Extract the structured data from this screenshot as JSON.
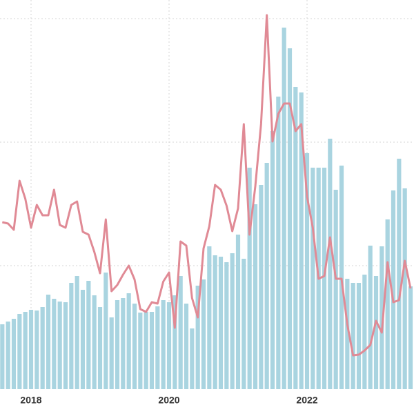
{
  "chart_data": {
    "type": "bar_line",
    "categories": [
      null,
      null,
      null,
      null,
      null,
      "2018",
      null,
      null,
      null,
      null,
      null,
      null,
      null,
      null,
      null,
      null,
      null,
      null,
      null,
      null,
      null,
      null,
      null,
      null,
      null,
      null,
      null,
      null,
      null,
      "2020",
      null,
      null,
      null,
      null,
      null,
      null,
      null,
      null,
      null,
      null,
      null,
      null,
      null,
      null,
      null,
      null,
      null,
      null,
      null,
      null,
      null,
      null,
      null,
      "2022",
      null,
      null,
      null,
      null,
      null,
      null,
      null,
      null,
      null,
      null,
      null,
      null,
      null,
      null,
      null,
      null,
      null,
      null
    ],
    "series": [
      {
        "type": "bar",
        "color": "#a9d4e0",
        "values": [
          94,
          98,
          102,
          109,
          112,
          115,
          114,
          119,
          137,
          131,
          127,
          126,
          154,
          164,
          144,
          157,
          136,
          119,
          169,
          104,
          129,
          132,
          139,
          124,
          111,
          112,
          112,
          120,
          129,
          126,
          136,
          164,
          124,
          88,
          150,
          159,
          207,
          194,
          192,
          184,
          197,
          224,
          189,
          321,
          268,
          296,
          328,
          374,
          424,
          524,
          494,
          438,
          430,
          342,
          321,
          321,
          321,
          363,
          289,
          324,
          160,
          154,
          154,
          166,
          208,
          164,
          207,
          246,
          288,
          334,
          291,
          149
        ]
      },
      {
        "type": "line",
        "color": "#e08a95",
        "values": [
          242,
          240,
          231,
          302,
          276,
          234,
          267,
          252,
          252,
          289,
          238,
          234,
          267,
          272,
          228,
          224,
          199,
          168,
          246,
          142,
          151,
          166,
          179,
          159,
          116,
          112,
          126,
          124,
          156,
          169,
          89,
          214,
          208,
          132,
          104,
          204,
          236,
          296,
          289,
          266,
          229,
          262,
          384,
          224,
          294,
          384,
          542,
          359,
          399,
          414,
          414,
          374,
          384,
          279,
          234,
          160,
          164,
          220,
          160,
          160,
          94,
          49,
          50,
          56,
          64,
          99,
          82,
          184,
          126,
          129,
          186,
          146
        ]
      }
    ],
    "ylim": [
      0,
      564
    ],
    "yticks": [
      179,
      358,
      537
    ],
    "grid": true
  }
}
